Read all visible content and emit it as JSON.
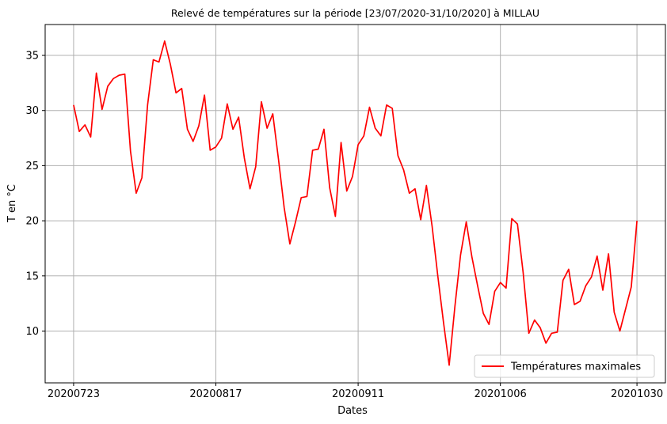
{
  "chart_data": {
    "type": "line",
    "title": "Relevé de températures sur la période [23/07/2020-31/10/2020] à MILLAU",
    "xlabel": "Dates",
    "ylabel": "T en °C",
    "xlim": [
      -5,
      104
    ],
    "ylim": [
      5.3,
      37.8
    ],
    "x_ticks": [
      0,
      25,
      50,
      75,
      99
    ],
    "x_tick_labels": [
      "20200723",
      "20200817",
      "20200911",
      "20201006",
      "20201030"
    ],
    "y_ticks": [
      10,
      15,
      20,
      25,
      30,
      35
    ],
    "y_tick_labels": [
      "10",
      "15",
      "20",
      "25",
      "30",
      "35"
    ],
    "grid": true,
    "legend_position": "lower right",
    "colors": {
      "series": "#ff0000",
      "grid": "#b0b0b0",
      "axes": "#000000"
    },
    "series": [
      {
        "name": "Températures maximales",
        "color": "#ff0000",
        "x": [
          0,
          1,
          2,
          3,
          4,
          5,
          6,
          7,
          8,
          9,
          10,
          11,
          12,
          13,
          14,
          15,
          16,
          17,
          18,
          19,
          20,
          21,
          22,
          23,
          24,
          25,
          26,
          27,
          28,
          29,
          30,
          31,
          32,
          33,
          34,
          35,
          36,
          37,
          38,
          39,
          40,
          41,
          42,
          43,
          44,
          45,
          46,
          47,
          48,
          49,
          50,
          51,
          52,
          53,
          54,
          55,
          56,
          57,
          58,
          59,
          60,
          61,
          62,
          63,
          64,
          65,
          66,
          67,
          68,
          69,
          70,
          71,
          72,
          73,
          74,
          75,
          76,
          77,
          78,
          79,
          80,
          81,
          82,
          83,
          84,
          85,
          86,
          87,
          88,
          89,
          90,
          91,
          92,
          93,
          94,
          95,
          96,
          97,
          98,
          99
        ],
        "values": [
          30.5,
          28.1,
          28.7,
          27.6,
          33.4,
          30.1,
          32.2,
          32.9,
          33.2,
          33.3,
          26.3,
          22.5,
          23.9,
          30.5,
          34.6,
          34.4,
          36.3,
          34.2,
          31.6,
          32.0,
          28.3,
          27.2,
          28.6,
          31.4,
          26.4,
          26.7,
          27.5,
          30.6,
          28.3,
          29.4,
          25.7,
          22.9,
          24.9,
          30.8,
          28.4,
          29.7,
          25.6,
          21.2,
          17.9,
          19.9,
          22.1,
          22.2,
          26.4,
          26.5,
          28.3,
          23.0,
          20.4,
          27.1,
          22.7,
          24.0,
          26.9,
          27.7,
          30.3,
          28.4,
          27.7,
          30.5,
          30.2,
          25.9,
          24.6,
          22.5,
          22.9,
          20.1,
          23.2,
          19.5,
          15.0,
          10.8,
          6.9,
          12.2,
          16.9,
          19.9,
          16.7,
          14.1,
          11.6,
          10.6,
          13.6,
          14.4,
          13.9,
          20.2,
          19.7,
          15.3,
          9.8,
          11.0,
          10.3,
          8.9,
          9.8,
          9.9,
          14.6,
          15.6,
          12.4,
          12.7,
          14.1,
          14.9,
          16.8,
          13.7,
          17.0,
          11.7,
          10.0,
          12.0,
          14.0,
          20.0
        ]
      }
    ]
  }
}
